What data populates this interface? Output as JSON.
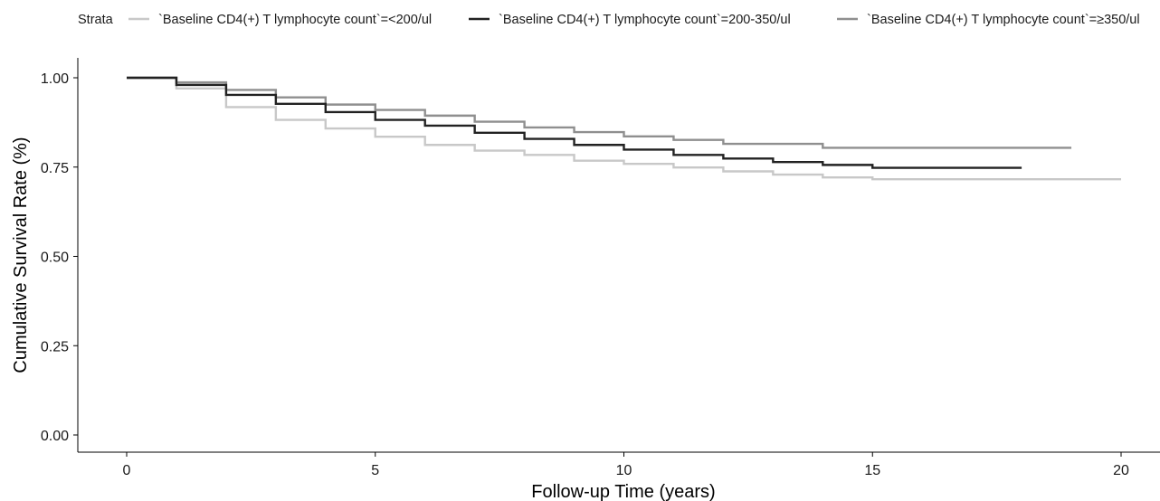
{
  "chart_data": {
    "type": "line",
    "step": true,
    "xlabel": "Follow-up Time (years)",
    "ylabel": "Cumulative Survival Rate (%)",
    "xlim": [
      0,
      20
    ],
    "ylim": [
      0,
      1
    ],
    "x_ticks": [
      0,
      5,
      10,
      15,
      20
    ],
    "y_ticks": [
      0,
      0.25,
      0.5,
      0.75,
      1.0
    ],
    "y_tick_labels": [
      "0.00",
      "0.25",
      "0.50",
      "0.75",
      "1.00"
    ],
    "grid": false,
    "legend": {
      "title": "Strata",
      "position": "top"
    },
    "series": [
      {
        "name": "`Baseline CD4(+) T lymphocyte count`=<200/ul",
        "color": "#c8c8c8",
        "x": [
          0,
          1,
          2,
          3,
          4,
          5,
          6,
          7,
          8,
          9,
          10,
          11,
          12,
          13,
          14,
          15,
          20
        ],
        "y": [
          1.0,
          0.97,
          0.918,
          0.882,
          0.858,
          0.835,
          0.812,
          0.796,
          0.784,
          0.768,
          0.759,
          0.749,
          0.738,
          0.729,
          0.721,
          0.716,
          0.716
        ]
      },
      {
        "name": "`Baseline CD4(+) T lymphocyte count`=200-350/ul",
        "color": "#222222",
        "x": [
          0,
          1,
          2,
          3,
          4,
          5,
          6,
          7,
          8,
          9,
          10,
          11,
          12,
          13,
          14,
          15,
          18
        ],
        "y": [
          1.0,
          0.98,
          0.952,
          0.927,
          0.904,
          0.882,
          0.866,
          0.846,
          0.829,
          0.812,
          0.799,
          0.784,
          0.774,
          0.764,
          0.756,
          0.748,
          0.748
        ]
      },
      {
        "name": "`Baseline CD4(+) T lymphocyte count`=≥350/ul",
        "color": "#8f8f8f",
        "x": [
          0,
          1,
          2,
          3,
          4,
          5,
          6,
          7,
          8,
          9,
          10,
          11,
          12,
          14,
          19
        ],
        "y": [
          1.0,
          0.987,
          0.966,
          0.945,
          0.925,
          0.91,
          0.894,
          0.877,
          0.861,
          0.848,
          0.836,
          0.826,
          0.815,
          0.804,
          0.804
        ]
      }
    ]
  }
}
